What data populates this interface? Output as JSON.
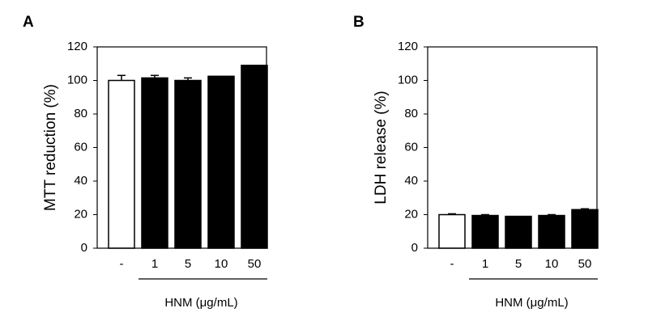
{
  "chart_data": [
    {
      "type": "bar",
      "panel_label": "A",
      "ylabel": "MTT reduction (%)",
      "xlabel": "HNM (μg/mL)",
      "categories": [
        "-",
        "1",
        "5",
        "10",
        "50"
      ],
      "values": [
        100,
        101.5,
        100,
        102.5,
        109
      ],
      "errors": [
        3,
        1.5,
        1.5,
        0,
        0
      ],
      "colors": [
        "#ffffff",
        "#000000",
        "#000000",
        "#000000",
        "#000000"
      ],
      "ylim": [
        0,
        120
      ],
      "yticks": [
        0,
        20,
        40,
        60,
        80,
        100,
        120
      ]
    },
    {
      "type": "bar",
      "panel_label": "B",
      "ylabel": "LDH release (%)",
      "xlabel": "HNM (μg/mL)",
      "categories": [
        "-",
        "1",
        "5",
        "10",
        "50"
      ],
      "values": [
        20,
        19.5,
        19,
        19.5,
        23
      ],
      "errors": [
        0.5,
        0.5,
        0,
        0.5,
        0.5
      ],
      "colors": [
        "#ffffff",
        "#000000",
        "#000000",
        "#000000",
        "#000000"
      ],
      "ylim": [
        0,
        120
      ],
      "yticks": [
        0,
        20,
        40,
        60,
        80,
        100,
        120
      ]
    }
  ]
}
